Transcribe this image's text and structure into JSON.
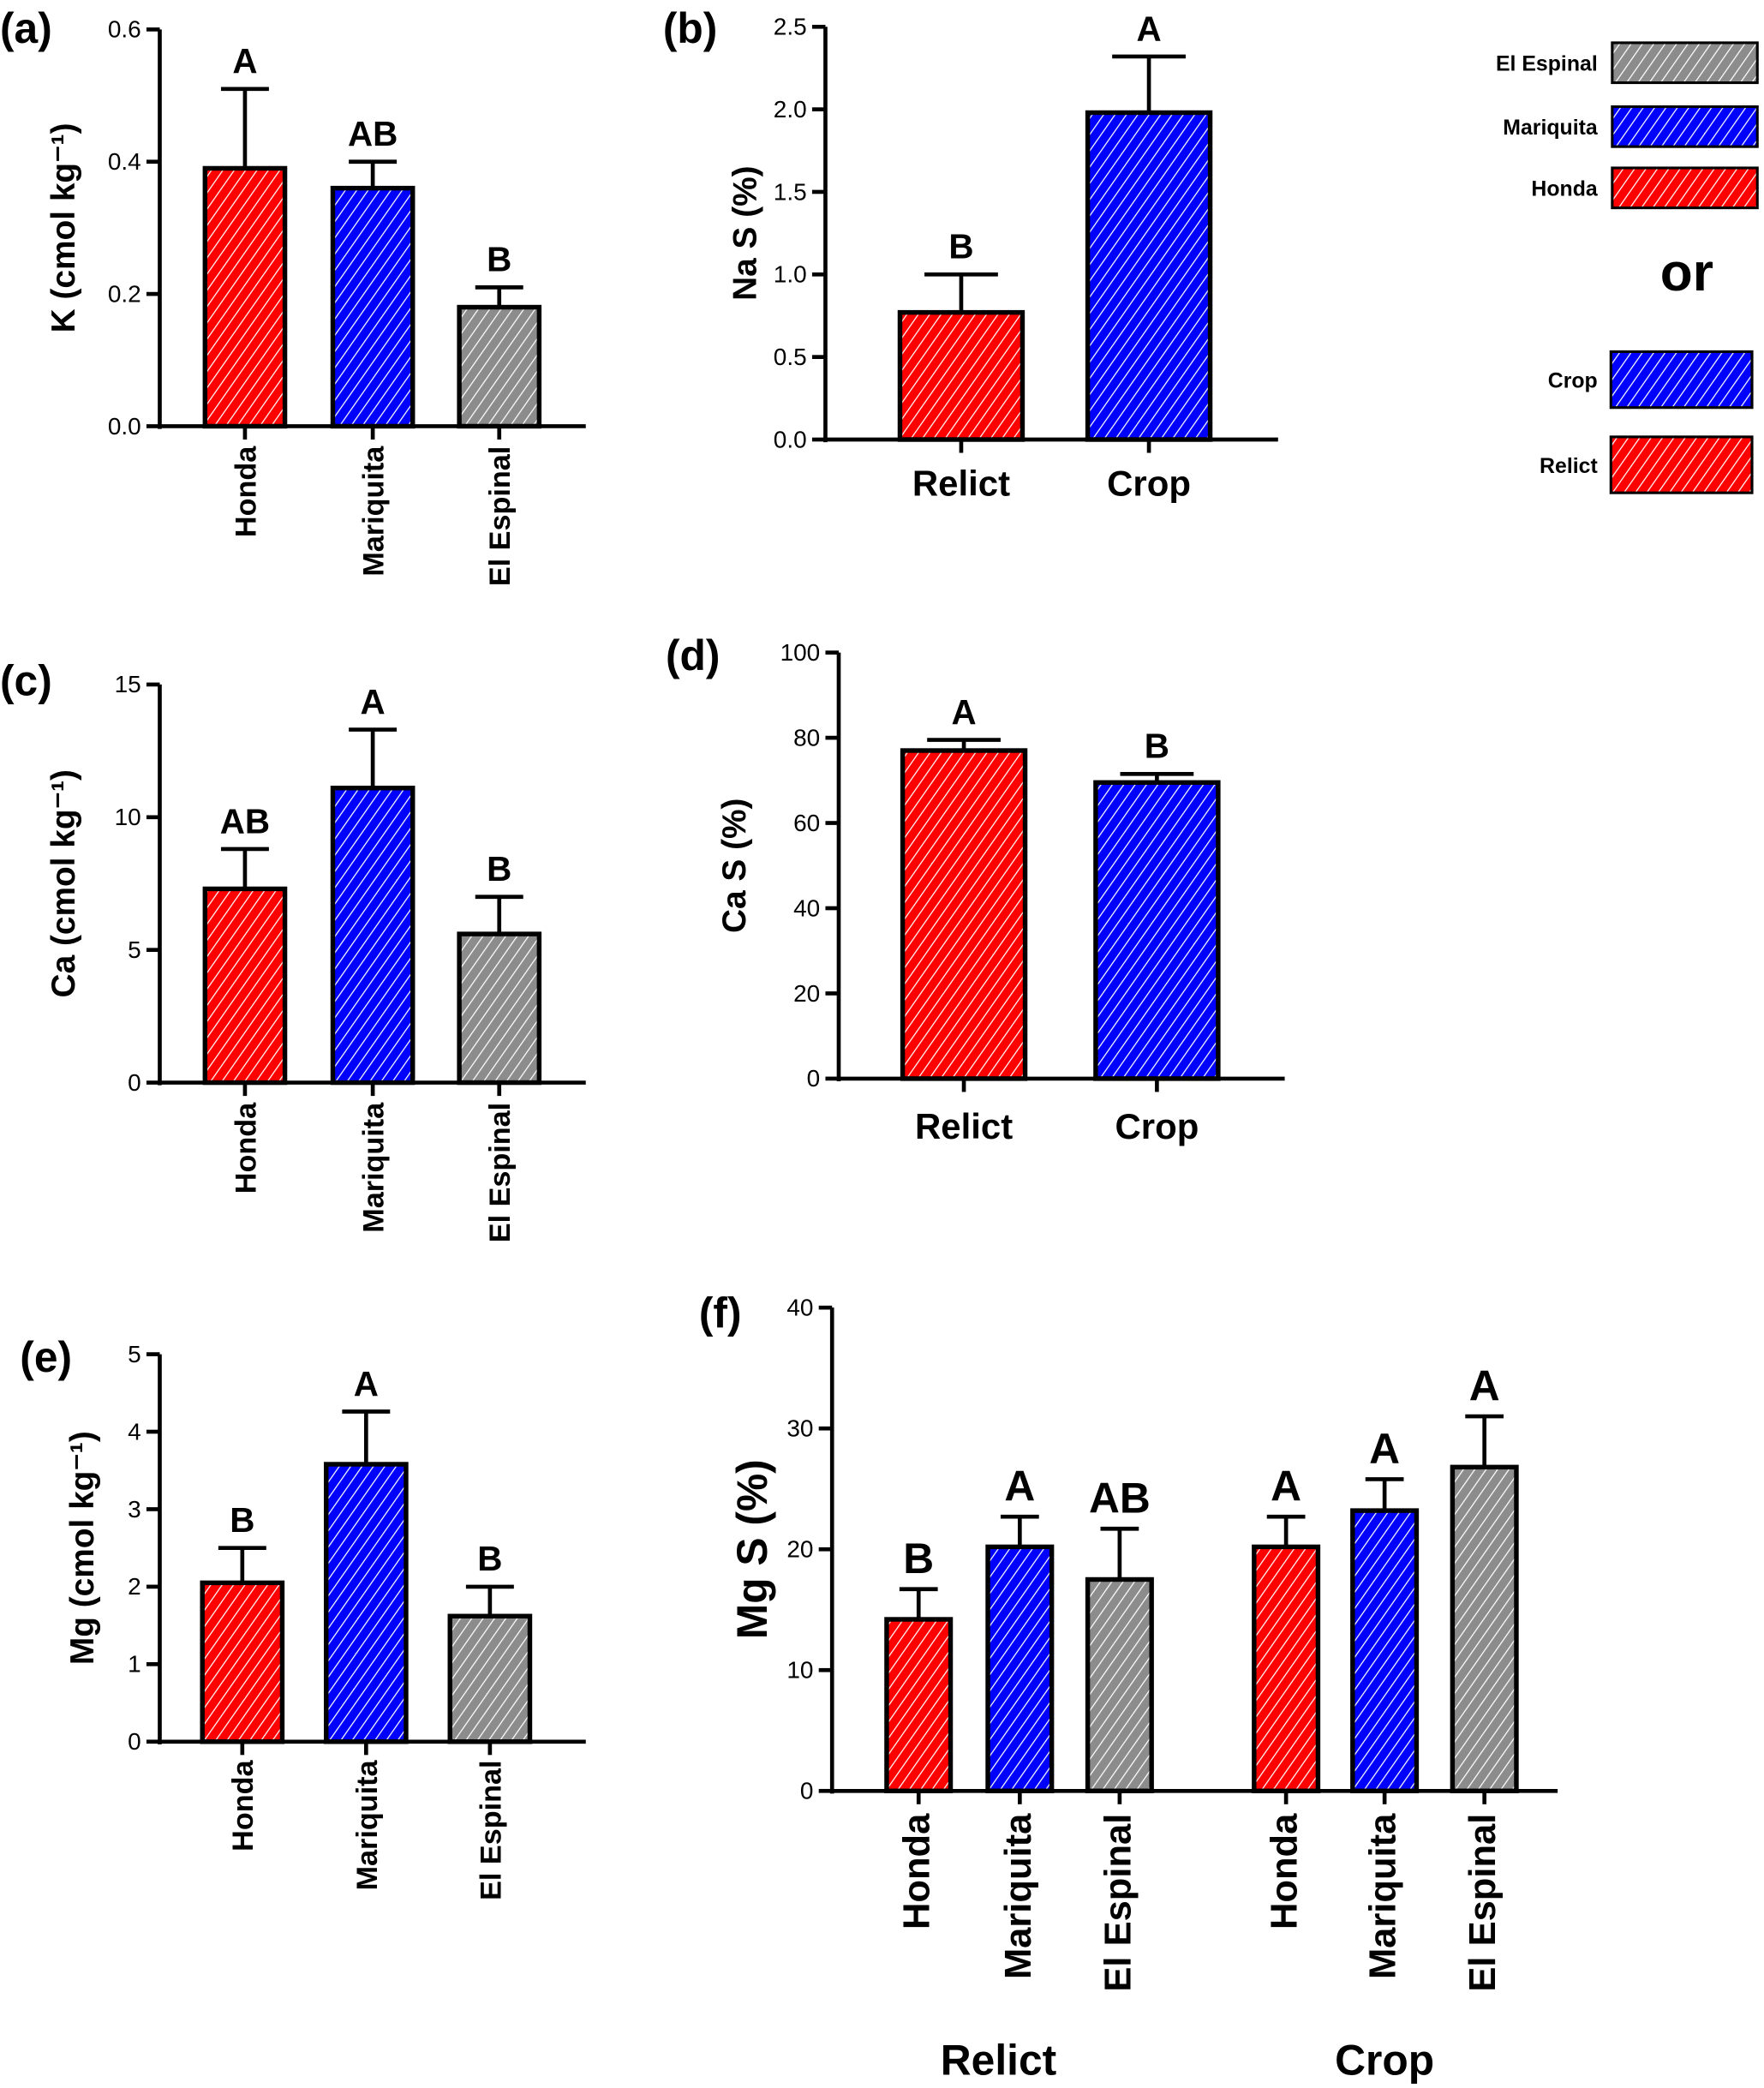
{
  "colors": {
    "Honda": "#ff0000",
    "Mariquita": "#0000ff",
    "El Espinal": "#8c8c8c",
    "Relict": "#ff0000",
    "Crop": "#0000ff"
  },
  "legend": {
    "items": [
      {
        "label": "El Espinal",
        "color": "#8c8c8c"
      },
      {
        "label": "Mariquita",
        "color": "#0000ff"
      },
      {
        "label": "Honda",
        "color": "#ff0000"
      }
    ],
    "separator": "or",
    "items2": [
      {
        "label": "Crop",
        "color": "#0000ff"
      },
      {
        "label": "Relict",
        "color": "#ff0000"
      }
    ]
  },
  "chart_data": [
    {
      "panel": "(a)",
      "type": "bar",
      "ylabel": "K (cmol kg⁻¹)",
      "ylim": [
        0,
        0.6
      ],
      "yticks": [
        "0.0",
        "0.2",
        "0.4",
        "0.6"
      ],
      "categories": [
        "Honda",
        "Mariquita",
        "El Espinal"
      ],
      "values": [
        0.39,
        0.36,
        0.18
      ],
      "errors": [
        0.12,
        0.04,
        0.03
      ],
      "letters": [
        "A",
        "AB",
        "B"
      ]
    },
    {
      "panel": "(b)",
      "type": "bar",
      "ylabel": "Na S (%)",
      "ylim": [
        0,
        2.5
      ],
      "yticks": [
        "0.0",
        "0.5",
        "1.0",
        "1.5",
        "2.0",
        "2.5"
      ],
      "categories": [
        "Relict",
        "Crop"
      ],
      "values": [
        0.77,
        1.98
      ],
      "errors": [
        0.23,
        0.34
      ],
      "letters": [
        "B",
        "A"
      ]
    },
    {
      "panel": "(c)",
      "type": "bar",
      "ylabel": "Ca (cmol kg⁻¹)",
      "ylim": [
        0,
        15
      ],
      "yticks": [
        "0",
        "5",
        "10",
        "15"
      ],
      "categories": [
        "Honda",
        "Mariquita",
        "El Espinal"
      ],
      "values": [
        7.3,
        11.1,
        5.6
      ],
      "errors": [
        1.5,
        2.2,
        1.4
      ],
      "letters": [
        "AB",
        "A",
        "B"
      ]
    },
    {
      "panel": "(d)",
      "type": "bar",
      "ylabel": "Ca S (%)",
      "ylim": [
        0,
        100
      ],
      "yticks": [
        "0",
        "20",
        "40",
        "60",
        "80",
        "100"
      ],
      "categories": [
        "Relict",
        "Crop"
      ],
      "values": [
        77,
        69.5
      ],
      "errors": [
        2.5,
        2
      ],
      "letters": [
        "A",
        "B"
      ]
    },
    {
      "panel": "(e)",
      "type": "bar",
      "ylabel": "Mg (cmol kg⁻¹)",
      "ylim": [
        0,
        5
      ],
      "yticks": [
        "0",
        "1",
        "2",
        "3",
        "4",
        "5"
      ],
      "categories": [
        "Honda",
        "Mariquita",
        "El Espinal"
      ],
      "values": [
        2.05,
        3.58,
        1.62
      ],
      "errors": [
        0.45,
        0.68,
        0.38
      ],
      "letters": [
        "B",
        "A",
        "B"
      ]
    },
    {
      "panel": "(f)",
      "type": "bar",
      "ylabel": "Mg S (%)",
      "ylim": [
        0,
        40
      ],
      "yticks": [
        "0",
        "10",
        "20",
        "30",
        "40"
      ],
      "categories": [
        "Honda",
        "Mariquita",
        "El Espinal",
        "Honda",
        "Mariquita",
        "El Espinal"
      ],
      "values": [
        14.2,
        20.2,
        17.5,
        20.2,
        23.2,
        26.8
      ],
      "errors": [
        2.5,
        2.5,
        4.2,
        2.5,
        2.6,
        4.2
      ],
      "letters": [
        "B",
        "A",
        "AB",
        "A",
        "A",
        "A"
      ],
      "groups": [
        "Relict",
        "Crop"
      ]
    }
  ]
}
